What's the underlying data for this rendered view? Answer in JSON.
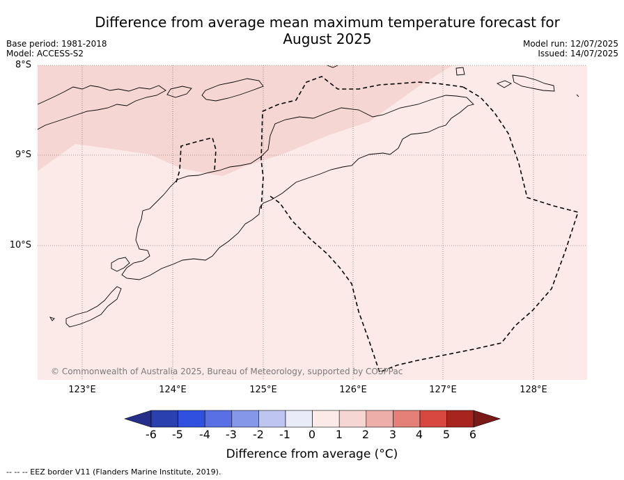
{
  "title": {
    "line1": "Difference from average mean maximum temperature forecast for",
    "line2": "August 2025"
  },
  "meta_left": {
    "base_period": "Base period: 1981-2018",
    "model": "Model: ACCESS-S2"
  },
  "meta_right": {
    "model_run": "Model run: 12/07/2025",
    "issued": "Issued: 14/07/2025"
  },
  "map": {
    "lat_labels": [
      {
        "label": "8°S",
        "lat": -8
      },
      {
        "label": "9°S",
        "lat": -9
      },
      {
        "label": "10°S",
        "lat": -10
      }
    ],
    "lon_labels": [
      {
        "label": "123°E",
        "lon": 123
      },
      {
        "label": "124°E",
        "lon": 124
      },
      {
        "label": "125°E",
        "lon": 125
      },
      {
        "label": "126°E",
        "lon": 126
      },
      {
        "label": "127°E",
        "lon": 127
      },
      {
        "label": "128°E",
        "lon": 128
      }
    ],
    "extent": {
      "lon_min": 122.5,
      "lon_max": 128.6,
      "lat_min": -11.5,
      "lat_max": -8.0
    },
    "copyright": "© Commonwealth of Australia 2025, Bureau of Meteorology, supported by COSPPac",
    "colors": {
      "anomaly_0_to_1": "#fbeae8",
      "anomaly_1_to_2": "#f6d6d3",
      "coastline": "#000000",
      "eez_border": "#000000",
      "gridline": "#555555"
    }
  },
  "colorbar": {
    "title": "Difference from average (°C)",
    "ticks": [
      "-6",
      "-5",
      "-4",
      "-3",
      "-2",
      "-1",
      "0",
      "1",
      "2",
      "3",
      "4",
      "5",
      "6"
    ],
    "colors": [
      "#252f8a",
      "#2a40ae",
      "#3050e0",
      "#5870e4",
      "#8497e8",
      "#bec5f0",
      "#e9ebf8",
      "#fbeae8",
      "#f6d6d3",
      "#eeaea8",
      "#e48078",
      "#d94840",
      "#a8241f",
      "#7a1a18"
    ]
  },
  "footnote": "--  --  -- EEZ border V11 (Flanders Marine Institute, 2019)."
}
